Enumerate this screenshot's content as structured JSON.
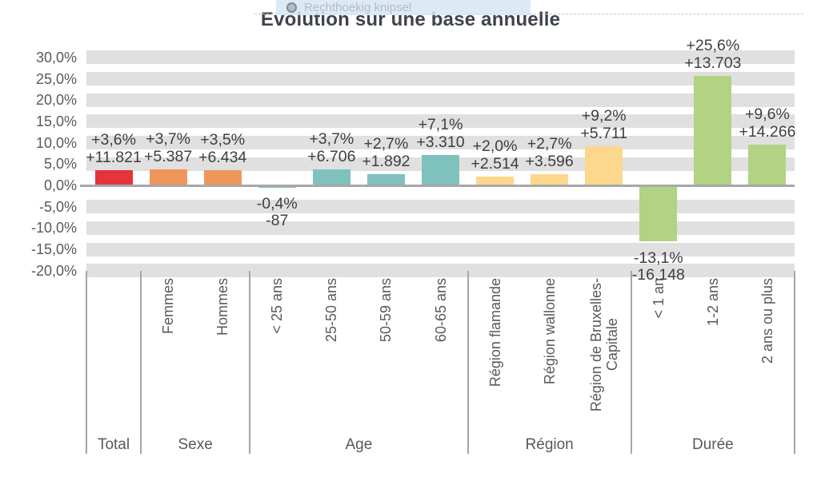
{
  "overlay": {
    "tool_label": "Rechthoekig knipsel",
    "icon": "snip-circle-icon"
  },
  "title": "Evolution sur une base annuelle",
  "colors": {
    "stripe": "#e0e0e0",
    "axis_line": "#a8a8a8",
    "separator": "#a6a6a6",
    "tick_text": "#595959",
    "data_label_text": "#3f3f3f",
    "title_text": "#3e434b",
    "total": "#e4333a",
    "sexe": "#ef975b",
    "age": "#7fc1bd",
    "region": "#fdd78c",
    "duree": "#b2d284"
  },
  "chart_data": {
    "type": "bar",
    "title": "Evolution sur une base annuelle",
    "xlabel": "",
    "ylabel": "",
    "ylim": [
      -20,
      30
    ],
    "ytick_step": 5,
    "ytick_labels": [
      "30,0%",
      "25,0%",
      "20,0%",
      "15,0%",
      "10,0%",
      "5,0%",
      "0,0%",
      "-5,0%",
      "-10,0%",
      "-15,0%",
      "-20,0%"
    ],
    "grid": "thick-grey-horizontal-bands-at-each-tick-except-zero",
    "legend": "none",
    "groups": [
      {
        "label": "Total",
        "color": "#e4333a",
        "bars": [
          {
            "category": "",
            "pct": 3.6,
            "pct_label": "+3,6%",
            "value": 11821,
            "value_label": "+11.821"
          }
        ]
      },
      {
        "label": "Sexe",
        "color": "#ef975b",
        "bars": [
          {
            "category": "Femmes",
            "pct": 3.7,
            "pct_label": "+3,7%",
            "value": 5387,
            "value_label": "+5.387"
          },
          {
            "category": "Hommes",
            "pct": 3.5,
            "pct_label": "+3,5%",
            "value": 6434,
            "value_label": "+6.434"
          }
        ]
      },
      {
        "label": "Age",
        "color": "#7fc1bd",
        "bars": [
          {
            "category": "< 25 ans",
            "pct": -0.4,
            "pct_label": "-0,4%",
            "value": -87,
            "value_label": "-87"
          },
          {
            "category": "25-50 ans",
            "pct": 3.7,
            "pct_label": "+3,7%",
            "value": 6706,
            "value_label": "+6.706"
          },
          {
            "category": "50-59 ans",
            "pct": 2.7,
            "pct_label": "+2,7%",
            "value": 1892,
            "value_label": "+1.892"
          },
          {
            "category": "60-65 ans",
            "pct": 7.1,
            "pct_label": "+7,1%",
            "value": 3310,
            "value_label": "+3.310"
          }
        ]
      },
      {
        "label": "Région",
        "color": "#fdd78c",
        "bars": [
          {
            "category": "Région flamande",
            "pct": 2.0,
            "pct_label": "+2,0%",
            "value": 2514,
            "value_label": "+2.514"
          },
          {
            "category": "Région wallonne",
            "pct": 2.7,
            "pct_label": "+2,7%",
            "value": 3596,
            "value_label": "+3.596"
          },
          {
            "category": "Région de Bruxelles-\nCapitale",
            "pct": 9.2,
            "pct_label": "+9,2%",
            "value": 5711,
            "value_label": "+5.711"
          }
        ]
      },
      {
        "label": "Durée",
        "color": "#b2d284",
        "bars": [
          {
            "category": "< 1 an",
            "pct": -13.1,
            "pct_label": "-13,1%",
            "value": -16148,
            "value_label": "-16.148"
          },
          {
            "category": "1-2 ans",
            "pct": 25.6,
            "pct_label": "+25,6%",
            "value": 13703,
            "value_label": "+13.703"
          },
          {
            "category": "2 ans ou plus",
            "pct": 9.6,
            "pct_label": "+9,6%",
            "value": 14266,
            "value_label": "+14.266"
          }
        ]
      }
    ]
  }
}
